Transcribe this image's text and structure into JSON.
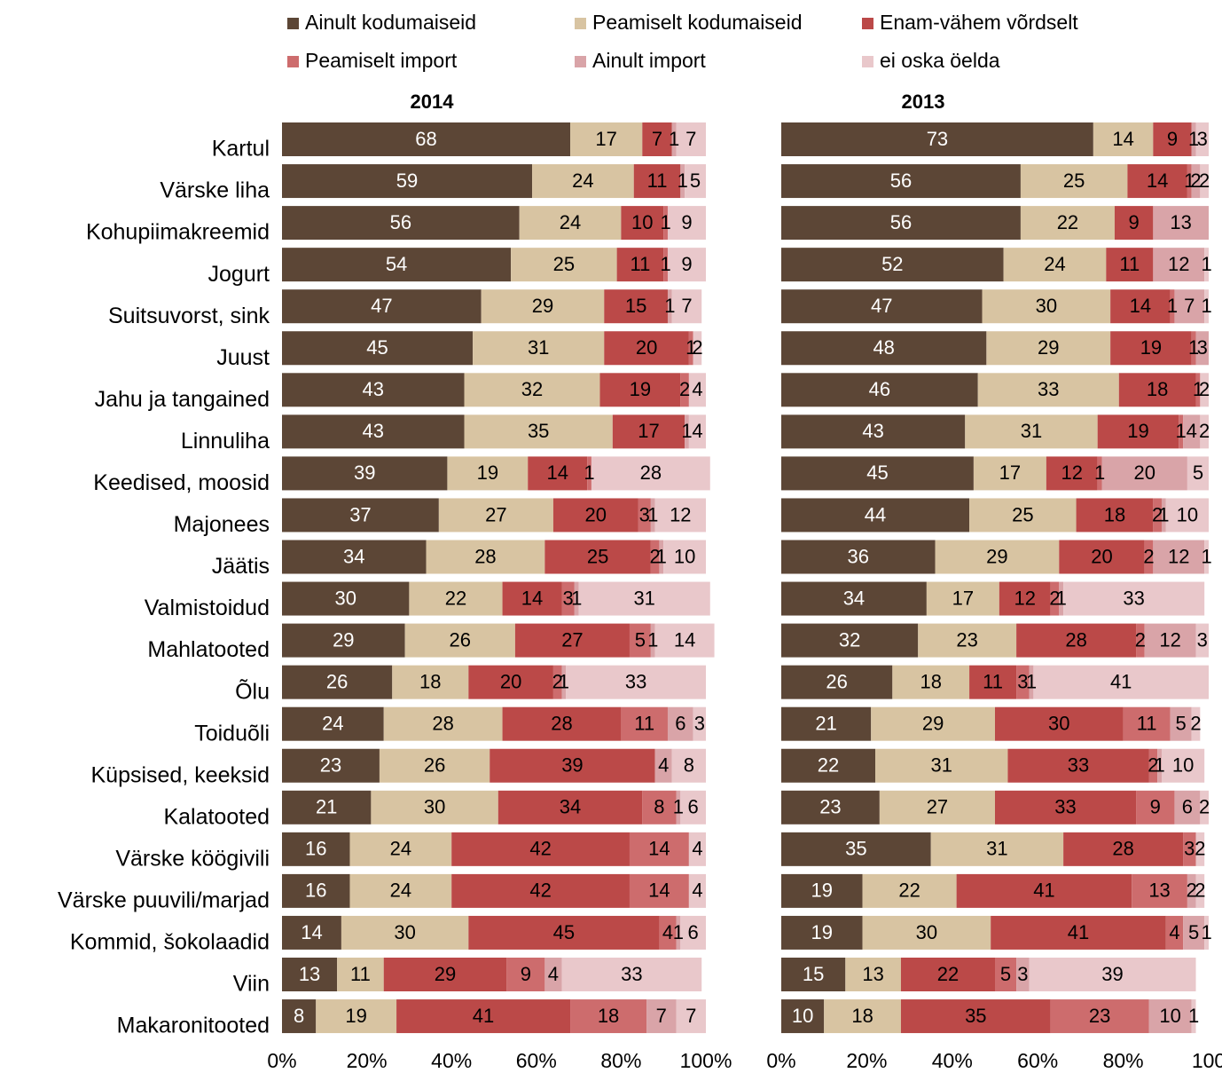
{
  "legend": [
    {
      "label": "Ainult kodumaiseid",
      "color": "#5c4636"
    },
    {
      "label": "Peamiselt kodumaiseid",
      "color": "#d8c4a2"
    },
    {
      "label": "Enam-vähem võrdselt",
      "color": "#bb4948"
    },
    {
      "label": "Peamiselt import",
      "color": "#cd6c6d"
    },
    {
      "label": "Ainult import",
      "color": "#d9a4a8"
    },
    {
      "label": "ei oska öelda",
      "color": "#e9c8cb"
    }
  ],
  "chart_data": [
    {
      "type": "bar",
      "orientation": "horizontal",
      "stacked": "100%",
      "title": "2014",
      "categories": [
        "Kartul",
        "Värske liha",
        "Kohupiimakreemid",
        "Jogurt",
        "Suitsuvorst, sink",
        "Juust",
        "Jahu ja tangained",
        "Linnuliha",
        "Keedised, moosid",
        "Majonees",
        "Jäätis",
        "Valmistoidud",
        "Mahlatooted",
        "Õlu",
        "Toiduõli",
        "Küpsised, keeksid",
        "Kalatooted",
        "Värske köögivili",
        "Värske puuvili/marjad",
        "Kommid, šokolaadid",
        "Viin",
        "Makaronitooted"
      ],
      "xticks": [
        "0%",
        "20%",
        "40%",
        "60%",
        "80%",
        "100%"
      ],
      "xlim": [
        0,
        100
      ],
      "series": [
        {
          "name": "Ainult kodumaiseid",
          "values": [
            68,
            59,
            56,
            54,
            47,
            45,
            43,
            43,
            39,
            37,
            34,
            30,
            29,
            26,
            24,
            23,
            21,
            16,
            16,
            14,
            13,
            8
          ]
        },
        {
          "name": "Peamiselt kodumaiseid",
          "values": [
            17,
            24,
            24,
            25,
            29,
            31,
            32,
            35,
            19,
            27,
            28,
            22,
            26,
            18,
            28,
            26,
            30,
            24,
            24,
            30,
            11,
            19
          ]
        },
        {
          "name": "Enam-vähem võrdselt",
          "values": [
            7,
            11,
            10,
            11,
            15,
            20,
            19,
            17,
            14,
            20,
            25,
            14,
            27,
            20,
            28,
            39,
            34,
            42,
            42,
            45,
            29,
            41
          ]
        },
        {
          "name": "Peamiselt import",
          "values": [
            0,
            0,
            1,
            1,
            0,
            1,
            2,
            0,
            1,
            3,
            2,
            3,
            5,
            2,
            11,
            0,
            8,
            14,
            14,
            4,
            9,
            18
          ]
        },
        {
          "name": "Ainult import",
          "values": [
            1,
            1,
            0,
            0,
            1,
            0,
            0,
            1,
            0,
            1,
            1,
            1,
            1,
            1,
            6,
            4,
            1,
            0,
            0,
            1,
            4,
            7
          ]
        },
        {
          "name": "ei oska öelda",
          "values": [
            7,
            5,
            9,
            9,
            7,
            2,
            4,
            4,
            28,
            12,
            10,
            31,
            14,
            33,
            3,
            8,
            6,
            4,
            4,
            6,
            33,
            7
          ]
        }
      ]
    },
    {
      "type": "bar",
      "orientation": "horizontal",
      "stacked": "100%",
      "title": "2013",
      "categories": [
        "Kartul",
        "Värske liha",
        "Kohupiimakreemid",
        "Jogurt",
        "Suitsuvorst, sink",
        "Juust",
        "Jahu ja tangained",
        "Linnuliha",
        "Keedised, moosid",
        "Majonees",
        "Jäätis",
        "Valmistoidud",
        "Mahlatooted",
        "Õlu",
        "Toiduõli",
        "Küpsised, keeksid",
        "Kalatooted",
        "Värske köögivili",
        "Värske puuvili/marjad",
        "Kommid, šokolaadid",
        "Viin",
        "Makaronitooted"
      ],
      "xticks": [
        "0%",
        "20%",
        "40%",
        "60%",
        "80%",
        "100"
      ],
      "xlim": [
        0,
        100
      ],
      "series": [
        {
          "name": "Ainult kodumaiseid",
          "values": [
            73,
            56,
            56,
            52,
            47,
            48,
            46,
            43,
            45,
            44,
            36,
            34,
            32,
            26,
            21,
            22,
            23,
            35,
            19,
            19,
            15,
            10
          ]
        },
        {
          "name": "Peamiselt kodumaiseid",
          "values": [
            14,
            25,
            22,
            24,
            30,
            29,
            33,
            31,
            17,
            25,
            29,
            17,
            23,
            18,
            29,
            31,
            27,
            31,
            22,
            30,
            13,
            18
          ]
        },
        {
          "name": "Enam-vähem võrdselt",
          "values": [
            9,
            14,
            9,
            11,
            14,
            19,
            18,
            19,
            12,
            18,
            20,
            12,
            28,
            11,
            30,
            33,
            33,
            28,
            41,
            41,
            22,
            35
          ]
        },
        {
          "name": "Peamiselt import",
          "values": [
            0,
            1,
            0,
            0,
            1,
            1,
            1,
            1,
            1,
            2,
            2,
            2,
            2,
            3,
            11,
            2,
            9,
            3,
            13,
            4,
            5,
            23
          ]
        },
        {
          "name": "Ainult import",
          "values": [
            1,
            2,
            13,
            12,
            7,
            3,
            0,
            4,
            20,
            1,
            12,
            1,
            12,
            1,
            5,
            1,
            6,
            0,
            2,
            5,
            3,
            10
          ]
        },
        {
          "name": "ei oska öelda",
          "values": [
            3,
            2,
            0,
            1,
            1,
            0,
            2,
            2,
            5,
            10,
            1,
            33,
            3,
            41,
            2,
            10,
            2,
            2,
            2,
            1,
            39,
            1
          ]
        }
      ]
    }
  ]
}
